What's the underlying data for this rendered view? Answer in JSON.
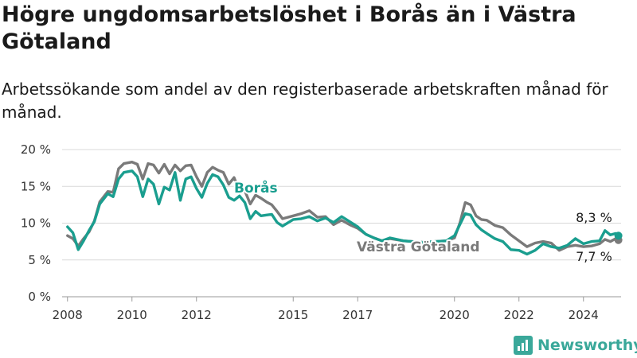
{
  "title": "Högre ungdomsarbetslöshet i Borås än i Västra Götaland",
  "subtitle": "Arbetssökande som andel av den registerbaserade arbetskraften månad för månad.",
  "brand": {
    "name": "Newsworthy",
    "icon": "newsworthy-chart-icon"
  },
  "colors": {
    "boras": "#1a9e8f",
    "vastra_gotaland": "#7a7a7a",
    "grid": "#d9d9d9",
    "text": "#1a1a1a"
  },
  "chart_data": {
    "type": "line",
    "title": "Högre ungdomsarbetslöshet i Borås än i Västra Götaland",
    "subtitle": "Arbetssökande som andel av den registerbaserade arbetskraften månad för månad.",
    "ylim": [
      0,
      20
    ],
    "grid": "horizontal",
    "y_ticks": [
      0,
      5,
      10,
      15,
      20
    ],
    "y_tick_labels": [
      "0 %",
      "5 %",
      "10 %",
      "15 %",
      "20 %"
    ],
    "x_range": [
      "2007-11",
      "2025-03"
    ],
    "x_tick_labels": [
      "2008",
      "2010",
      "2012",
      "2015",
      "2017",
      "2020",
      "2022",
      "2024"
    ],
    "end_labels": [
      "8,3 %",
      "7,7 %"
    ],
    "series": [
      {
        "name": "Borås",
        "points": [
          [
            "2008-01",
            9.5
          ],
          [
            "2008-03",
            8.7
          ],
          [
            "2008-05",
            6.4
          ],
          [
            "2008-07",
            7.6
          ],
          [
            "2008-09",
            9.0
          ],
          [
            "2008-11",
            10.2
          ],
          [
            "2009-01",
            12.6
          ],
          [
            "2009-04",
            14.0
          ],
          [
            "2009-06",
            13.6
          ],
          [
            "2009-08",
            16.0
          ],
          [
            "2009-10",
            16.9
          ],
          [
            "2010-01",
            17.1
          ],
          [
            "2010-03",
            16.3
          ],
          [
            "2010-05",
            13.6
          ],
          [
            "2010-07",
            16.0
          ],
          [
            "2010-09",
            15.3
          ],
          [
            "2010-11",
            12.6
          ],
          [
            "2011-01",
            14.9
          ],
          [
            "2011-03",
            14.5
          ],
          [
            "2011-05",
            16.9
          ],
          [
            "2011-07",
            13.1
          ],
          [
            "2011-09",
            16.0
          ],
          [
            "2011-11",
            16.3
          ],
          [
            "2012-01",
            14.7
          ],
          [
            "2012-03",
            13.5
          ],
          [
            "2012-05",
            15.4
          ],
          [
            "2012-07",
            16.6
          ],
          [
            "2012-09",
            16.3
          ],
          [
            "2012-11",
            15.2
          ],
          [
            "2013-01",
            13.5
          ],
          [
            "2013-03",
            13.1
          ],
          [
            "2013-05",
            13.7
          ],
          [
            "2013-07",
            12.8
          ],
          [
            "2013-09",
            10.6
          ],
          [
            "2013-11",
            11.6
          ],
          [
            "2014-01",
            11.0
          ],
          [
            "2014-03",
            11.1
          ],
          [
            "2014-05",
            11.2
          ],
          [
            "2014-07",
            10.1
          ],
          [
            "2014-09",
            9.6
          ],
          [
            "2015-01",
            10.5
          ],
          [
            "2015-04",
            10.6
          ],
          [
            "2015-07",
            10.9
          ],
          [
            "2015-10",
            10.3
          ],
          [
            "2016-01",
            10.7
          ],
          [
            "2016-04",
            10.1
          ],
          [
            "2016-07",
            10.9
          ],
          [
            "2016-10",
            10.2
          ],
          [
            "2017-01",
            9.5
          ],
          [
            "2017-04",
            8.5
          ],
          [
            "2017-07",
            8.0
          ],
          [
            "2017-10",
            7.6
          ],
          [
            "2018-01",
            8.0
          ],
          [
            "2018-06",
            7.6
          ],
          [
            "2019-01",
            7.4
          ],
          [
            "2019-06",
            7.5
          ],
          [
            "2019-10",
            7.6
          ],
          [
            "2020-01",
            8.3
          ],
          [
            "2020-03",
            9.8
          ],
          [
            "2020-05",
            11.3
          ],
          [
            "2020-07",
            11.1
          ],
          [
            "2020-09",
            9.8
          ],
          [
            "2020-11",
            9.1
          ],
          [
            "2021-01",
            8.6
          ],
          [
            "2021-04",
            7.9
          ],
          [
            "2021-07",
            7.5
          ],
          [
            "2021-10",
            6.4
          ],
          [
            "2022-01",
            6.3
          ],
          [
            "2022-04",
            5.8
          ],
          [
            "2022-07",
            6.3
          ],
          [
            "2022-10",
            7.2
          ],
          [
            "2023-01",
            6.8
          ],
          [
            "2023-04",
            6.6
          ],
          [
            "2023-07",
            7.0
          ],
          [
            "2023-10",
            7.9
          ],
          [
            "2024-01",
            7.2
          ],
          [
            "2024-04",
            7.5
          ],
          [
            "2024-07",
            7.6
          ],
          [
            "2024-09",
            9.0
          ],
          [
            "2024-11",
            8.4
          ],
          [
            "2025-01",
            8.6
          ],
          [
            "2025-02",
            8.3
          ]
        ]
      },
      {
        "name": "Västra Götaland",
        "points": [
          [
            "2008-01",
            8.3
          ],
          [
            "2008-03",
            7.9
          ],
          [
            "2008-05",
            6.9
          ],
          [
            "2008-07",
            7.9
          ],
          [
            "2008-09",
            8.8
          ],
          [
            "2008-11",
            10.3
          ],
          [
            "2009-01",
            12.9
          ],
          [
            "2009-04",
            14.3
          ],
          [
            "2009-06",
            14.2
          ],
          [
            "2009-08",
            17.4
          ],
          [
            "2009-10",
            18.1
          ],
          [
            "2010-01",
            18.3
          ],
          [
            "2010-03",
            18.0
          ],
          [
            "2010-05",
            16.0
          ],
          [
            "2010-07",
            18.1
          ],
          [
            "2010-09",
            17.9
          ],
          [
            "2010-11",
            16.8
          ],
          [
            "2011-01",
            18.0
          ],
          [
            "2011-03",
            16.7
          ],
          [
            "2011-05",
            17.9
          ],
          [
            "2011-07",
            17.1
          ],
          [
            "2011-09",
            17.8
          ],
          [
            "2011-11",
            17.9
          ],
          [
            "2012-01",
            16.3
          ],
          [
            "2012-03",
            15.0
          ],
          [
            "2012-05",
            16.9
          ],
          [
            "2012-07",
            17.6
          ],
          [
            "2012-09",
            17.2
          ],
          [
            "2012-11",
            16.9
          ],
          [
            "2013-01",
            15.3
          ],
          [
            "2013-03",
            16.2
          ],
          [
            "2013-05",
            14.3
          ],
          [
            "2013-07",
            14.4
          ],
          [
            "2013-09",
            12.6
          ],
          [
            "2013-11",
            13.8
          ],
          [
            "2014-01",
            13.4
          ],
          [
            "2014-03",
            12.9
          ],
          [
            "2014-05",
            12.5
          ],
          [
            "2014-07",
            11.6
          ],
          [
            "2014-09",
            10.6
          ],
          [
            "2015-01",
            11.0
          ],
          [
            "2015-04",
            11.3
          ],
          [
            "2015-07",
            11.7
          ],
          [
            "2015-10",
            10.8
          ],
          [
            "2016-01",
            10.9
          ],
          [
            "2016-04",
            9.8
          ],
          [
            "2016-07",
            10.4
          ],
          [
            "2016-10",
            9.8
          ],
          [
            "2017-01",
            9.3
          ],
          [
            "2017-04",
            8.5
          ],
          [
            "2017-07",
            8.0
          ],
          [
            "2017-10",
            7.6
          ],
          [
            "2018-01",
            7.9
          ],
          [
            "2018-06",
            7.6
          ],
          [
            "2019-01",
            7.4
          ],
          [
            "2019-06",
            7.5
          ],
          [
            "2019-10",
            7.6
          ],
          [
            "2020-01",
            8.0
          ],
          [
            "2020-03",
            10.0
          ],
          [
            "2020-05",
            12.8
          ],
          [
            "2020-07",
            12.5
          ],
          [
            "2020-09",
            11.0
          ],
          [
            "2020-11",
            10.5
          ],
          [
            "2021-01",
            10.4
          ],
          [
            "2021-04",
            9.7
          ],
          [
            "2021-07",
            9.4
          ],
          [
            "2021-10",
            8.4
          ],
          [
            "2022-01",
            7.6
          ],
          [
            "2022-04",
            6.8
          ],
          [
            "2022-07",
            7.3
          ],
          [
            "2022-10",
            7.5
          ],
          [
            "2023-01",
            7.3
          ],
          [
            "2023-04",
            6.3
          ],
          [
            "2023-07",
            6.8
          ],
          [
            "2023-10",
            7.0
          ],
          [
            "2024-01",
            6.8
          ],
          [
            "2024-04",
            6.9
          ],
          [
            "2024-07",
            7.2
          ],
          [
            "2024-09",
            7.8
          ],
          [
            "2024-11",
            7.5
          ],
          [
            "2025-01",
            7.9
          ],
          [
            "2025-02",
            7.7
          ]
        ]
      }
    ]
  }
}
